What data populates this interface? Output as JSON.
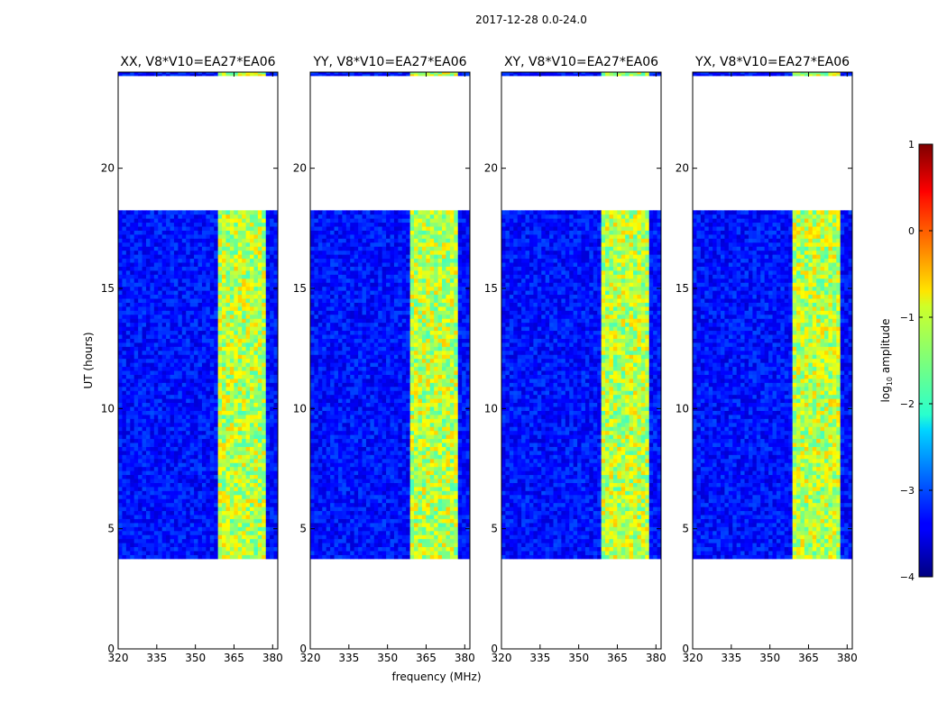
{
  "chart_data": {
    "type": "heatmap",
    "suptitle": "2017-12-28 0.0-24.0",
    "xlabel": "frequency (MHz)",
    "ylabel": "UT (hours)",
    "xlim": [
      320,
      382
    ],
    "ylim": [
      0,
      24
    ],
    "x_ticks": [
      320,
      335,
      350,
      365,
      380
    ],
    "x_tick_labels": [
      "320",
      "335",
      "350",
      "365",
      "380"
    ],
    "y_ticks": [
      0,
      5,
      10,
      15,
      20
    ],
    "y_tick_labels": [
      "0",
      "5",
      "10",
      "15",
      "20"
    ],
    "colorbar": {
      "label_prefix": "log",
      "label_sub": "10",
      "label_suffix": " amplitude",
      "range": [
        -4,
        1
      ],
      "ticks": [
        -4,
        -3,
        -2,
        -1,
        0,
        1
      ],
      "tick_labels": [
        "−4",
        "−3",
        "−2",
        "−1",
        "0",
        "1"
      ],
      "colormap": "jet"
    },
    "data_extent": {
      "time_ranges_hours": [
        [
          3.75,
          18.25
        ],
        [
          23.85,
          24.0
        ]
      ],
      "background_band_mhz": [
        320,
        382
      ],
      "active_band_mhz": [
        359,
        378
      ],
      "background_log10_amplitude": -3.3,
      "active_band_log10_amplitude": -1.2
    },
    "panels": [
      {
        "title": "XX, V8*V10=EA27*EA06"
      },
      {
        "title": "YY, V8*V10=EA27*EA06"
      },
      {
        "title": "XY, V8*V10=EA27*EA06"
      },
      {
        "title": "YX, V8*V10=EA27*EA06"
      }
    ]
  }
}
